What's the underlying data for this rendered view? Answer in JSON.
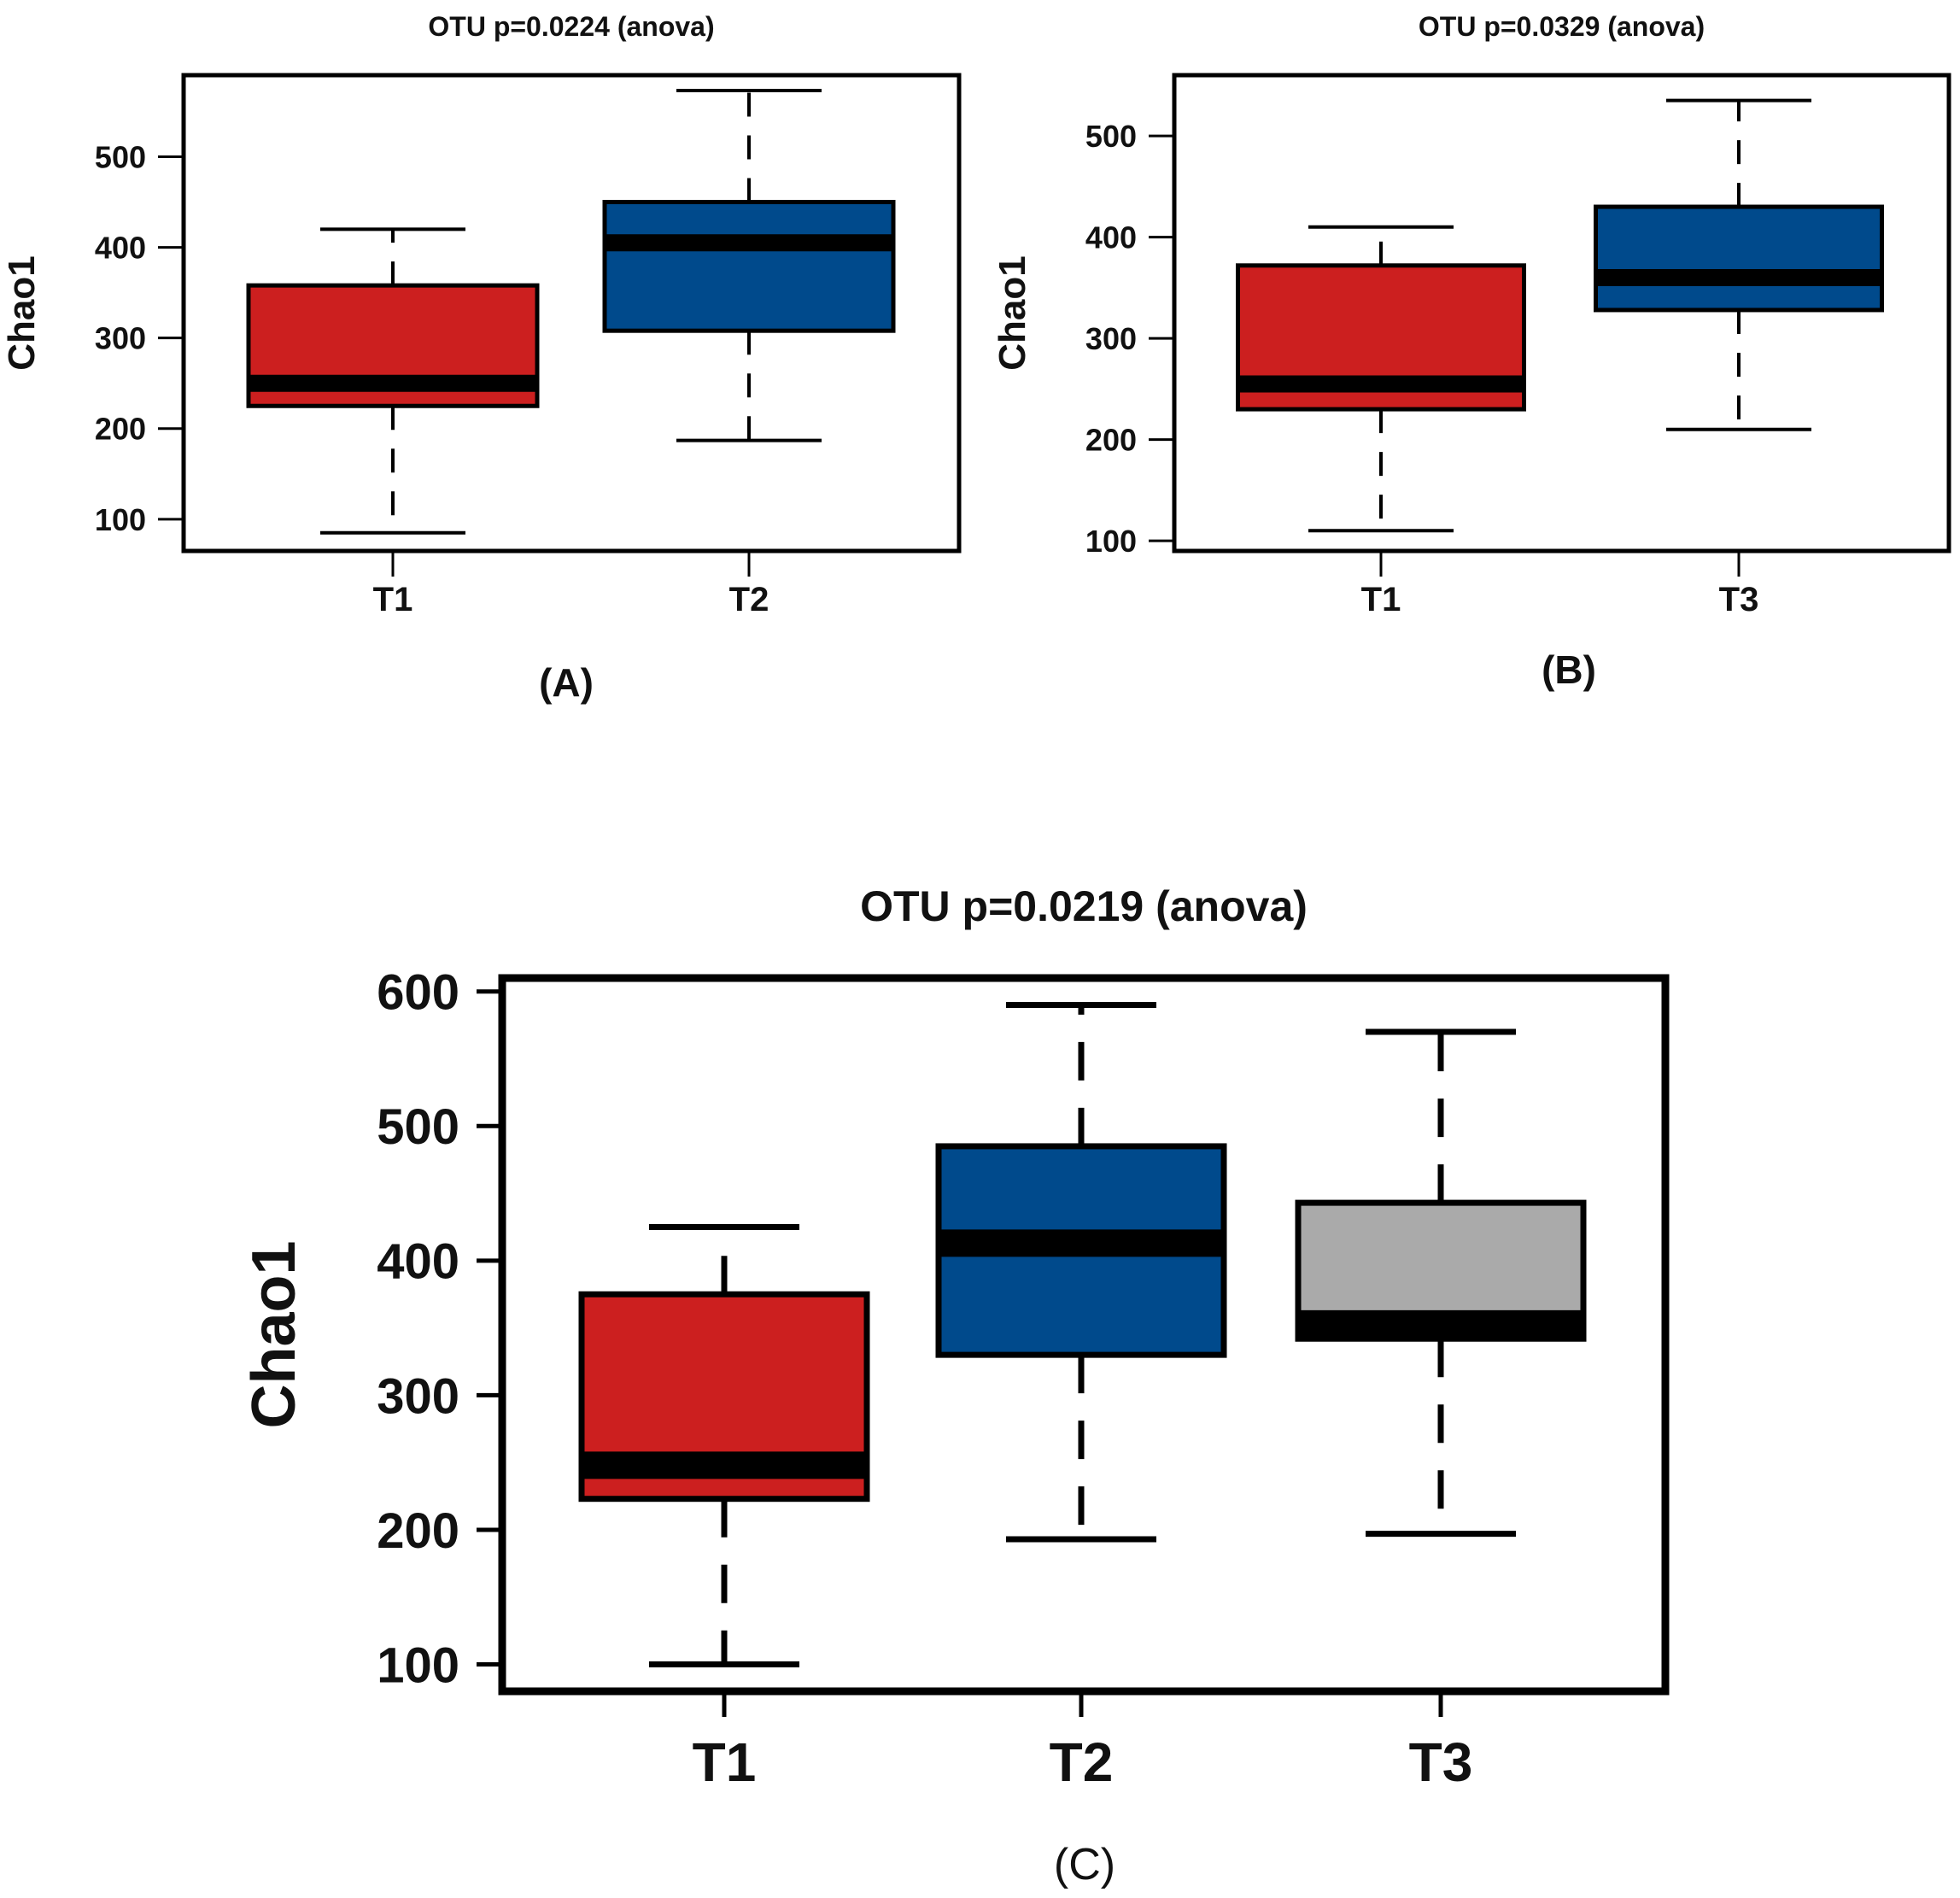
{
  "chart_data": [
    {
      "type": "boxplot",
      "panel_label": "(A)",
      "title": "OTU p=0.0224 (anova)",
      "ylabel": "Chao1",
      "xlabel": "",
      "ylim": [
        65,
        590
      ],
      "yticks": [
        100,
        200,
        300,
        400,
        500
      ],
      "groups": [
        {
          "name": "T1",
          "color": "#cc1f1f",
          "min": 85,
          "q1": 225,
          "median": 250,
          "q3": 358,
          "max": 420
        },
        {
          "name": "T2",
          "color": "#004a8c",
          "min": 187,
          "q1": 308,
          "median": 405,
          "q3": 450,
          "max": 573
        }
      ]
    },
    {
      "type": "boxplot",
      "panel_label": "(B)",
      "title": "OTU p=0.0329 (anova)",
      "ylabel": "Chao1",
      "xlabel": "",
      "ylim": [
        90,
        560
      ],
      "yticks": [
        100,
        200,
        300,
        400,
        500
      ],
      "groups": [
        {
          "name": "T1",
          "color": "#cc1f1f",
          "min": 110,
          "q1": 230,
          "median": 255,
          "q3": 372,
          "max": 410
        },
        {
          "name": "T3",
          "color": "#004a8c",
          "min": 210,
          "q1": 328,
          "median": 360,
          "q3": 430,
          "max": 535
        }
      ]
    },
    {
      "type": "boxplot",
      "panel_label": "(C)",
      "title": "OTU p=0.0219 (anova)",
      "ylabel": "Chao1",
      "xlabel": "",
      "ylim": [
        80,
        610
      ],
      "yticks": [
        100,
        200,
        300,
        400,
        500,
        600
      ],
      "groups": [
        {
          "name": "T1",
          "color": "#cc1f1f",
          "min": 100,
          "q1": 223,
          "median": 248,
          "q3": 375,
          "max": 425
        },
        {
          "name": "T2",
          "color": "#004a8c",
          "min": 193,
          "q1": 330,
          "median": 413,
          "q3": 485,
          "max": 590
        },
        {
          "name": "T3",
          "color": "#aaaaaa",
          "min": 197,
          "q1": 342,
          "median": 353,
          "q3": 443,
          "max": 570
        }
      ]
    }
  ]
}
